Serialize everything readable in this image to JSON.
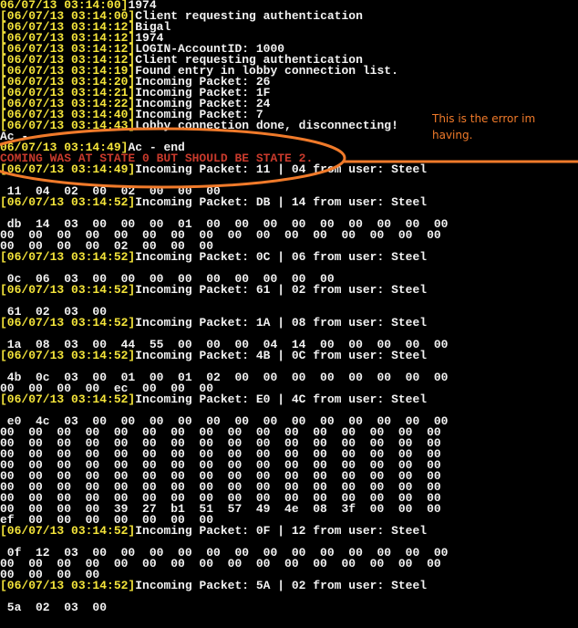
{
  "console": {
    "lines": [
      {
        "time": "06/07/13 03:14:00]",
        "message": "1974"
      },
      {
        "time": "[06/07/13 03:14:00]",
        "message": "Client requesting authentication"
      },
      {
        "time": "[06/07/13 03:14:12]",
        "message": "Bigal"
      },
      {
        "time": "[06/07/13 03:14:12]",
        "message": "1974"
      },
      {
        "time": "[06/07/13 03:14:12]",
        "message": "LOGIN-AccountID: 1000"
      },
      {
        "time": "[06/07/13 03:14:12]",
        "message": "Client requesting authentication"
      },
      {
        "time": "[06/07/13 03:14:19]",
        "message": "Found entry in lobby connection list."
      },
      {
        "time": "[06/07/13 03:14:20]",
        "message": "Incoming Packet: 26"
      },
      {
        "time": "[06/07/13 03:14:21]",
        "message": "Incoming Packet: 1F"
      },
      {
        "time": "[06/07/13 03:14:22]",
        "message": "Incoming Packet: 24"
      },
      {
        "time": "[06/07/13 03:14:40]",
        "message": "Incoming Packet: 7"
      },
      {
        "time": "[06/07/13 03:14:43]",
        "message": "Lobby connection done, disconnecting!"
      },
      {
        "message": "Ac - "
      },
      {
        "time": "06/07/13 03:14:49]",
        "message": "Ac - end"
      },
      {
        "error": "COMING WAS AT STATE 0 BUT SHOULD BE STATE 2."
      },
      {
        "time": "[06/07/13 03:14:49]",
        "message": "Incoming Packet: 11 | 04 from user: Steel"
      },
      null,
      {
        "message": " 11  04  02  00  02  00  00  00"
      },
      {
        "time": "[06/07/13 03:14:52]",
        "message": "Incoming Packet: DB | 14 from user: Steel"
      },
      null,
      {
        "message": " db  14  03  00  00  00  01  00  00  00  00  00  00  00  00  00"
      },
      {
        "message": "00  00  00  00  00  00  00  00  00  00  00  00  00  00  00  00"
      },
      {
        "message": "00  00  00  00  02  00  00  00"
      },
      {
        "time": "[06/07/13 03:14:52]",
        "message": "Incoming Packet: 0C | 06 from user: Steel"
      },
      null,
      {
        "message": " 0c  06  03  00  00  00  00  00  00  00  00  00"
      },
      {
        "time": "[06/07/13 03:14:52]",
        "message": "Incoming Packet: 61 | 02 from user: Steel"
      },
      null,
      {
        "message": " 61  02  03  00"
      },
      {
        "time": "[06/07/13 03:14:52]",
        "message": "Incoming Packet: 1A | 08 from user: Steel"
      },
      null,
      {
        "message": " 1a  08  03  00  44  55  00  00  00  04  14  00  00  00  00  00"
      },
      {
        "time": "[06/07/13 03:14:52]",
        "message": "Incoming Packet: 4B | 0C from user: Steel"
      },
      null,
      {
        "message": " 4b  0c  03  00  01  00  01  02  00  00  00  00  00  00  00  00"
      },
      {
        "message": "00  00  00  00  ec  00  00  00"
      },
      {
        "time": "[06/07/13 03:14:52]",
        "message": "Incoming Packet: E0 | 4C from user: Steel"
      },
      null,
      {
        "message": " e0  4c  03  00  00  00  00  00  00  00  00  00  00  00  00  00"
      },
      {
        "message": "00  00  00  00  00  00  00  00  00  00  00  00  00  00  00  00"
      },
      {
        "message": "00  00  00  00  00  00  00  00  00  00  00  00  00  00  00  00"
      },
      {
        "message": "00  00  00  00  00  00  00  00  00  00  00  00  00  00  00  00"
      },
      {
        "message": "00  00  00  00  00  00  00  00  00  00  00  00  00  00  00  00"
      },
      {
        "message": "00  00  00  00  00  00  00  00  00  00  00  00  00  00  00  00"
      },
      {
        "message": "00  00  00  00  00  00  00  00  00  00  00  00  00  00  00  00"
      },
      {
        "message": "00  00  00  00  00  00  00  00  00  00  00  00  00  00  00  00"
      },
      {
        "message": "00  00  00  00  39  27  b1  51  57  49  4e  08  3f  00  00  00"
      },
      {
        "message": "ef  00  00  00  00  00  00  00"
      },
      {
        "time": "[06/07/13 03:14:52]",
        "message": "Incoming Packet: 0F | 12 from user: Steel"
      },
      null,
      {
        "message": " 0f  12  03  00  00  00  00  00  00  00  00  00  00  00  00  00"
      },
      {
        "message": "00  00  00  00  00  00  00  00  00  00  00  00  00  00  00  00"
      },
      {
        "message": "00  00  00  00"
      },
      {
        "time": "[06/07/13 03:14:52]",
        "message": "Incoming Packet: 5A | 02 from user: Steel"
      },
      null,
      {
        "message": " 5a  02  03  00"
      }
    ]
  },
  "annotation": {
    "text": "This is the error im having."
  }
}
